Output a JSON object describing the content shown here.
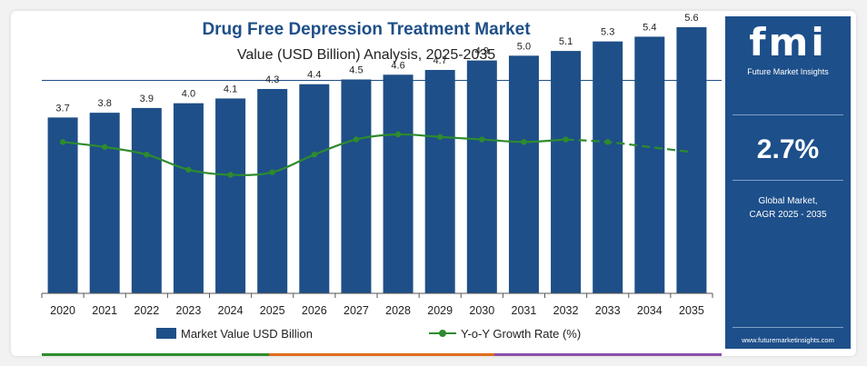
{
  "header": {
    "title": "Drug Free Depression Treatment Market",
    "subtitle": "Value (USD Billion) Analysis, 2025-2035"
  },
  "legend": {
    "bar_label": "Market Value USD Billion",
    "line_label": "Y-o-Y Growth Rate (%)"
  },
  "sidebar": {
    "logo_text": "fmi",
    "logo_subtitle": "Future Market Insights",
    "cagr_value": "2.7%",
    "cagr_label_line1": "Global Market,",
    "cagr_label_line2": "CAGR 2025 - 2035",
    "url": "www.futuremarketinsights.com"
  },
  "colors": {
    "bar": "#1e4f88",
    "line": "#2e8b2e",
    "sidebar_bg": "#1d4f8a",
    "accent_bottom": [
      "#2e8b2e",
      "#e06c1b",
      "#8a4fa8"
    ]
  },
  "chart_data": {
    "type": "bar",
    "categories": [
      "2020",
      "2021",
      "2022",
      "2023",
      "2024",
      "2025",
      "2026",
      "2027",
      "2028",
      "2029",
      "2030",
      "2031",
      "2032",
      "2033",
      "2034",
      "2035"
    ],
    "series": [
      {
        "name": "Market Value USD Billion",
        "type": "bar",
        "values": [
          3.7,
          3.8,
          3.9,
          4.0,
          4.1,
          4.3,
          4.4,
          4.5,
          4.6,
          4.7,
          4.9,
          5.0,
          5.1,
          5.3,
          5.4,
          5.6
        ],
        "labels": [
          "3.7",
          "3.8",
          "3.9",
          "4.0",
          "4.1",
          "4.3",
          "4.4",
          "4.5",
          "4.6",
          "4.7",
          "4.9",
          "5.0",
          "5.1",
          "5.3",
          "5.4",
          "5.6"
        ]
      },
      {
        "name": "Y-o-Y Growth Rate (%)",
        "type": "line",
        "values": [
          3.0,
          2.9,
          2.75,
          2.45,
          2.35,
          2.4,
          2.75,
          3.05,
          3.15,
          3.1,
          3.05,
          3.0,
          3.05,
          3.0,
          2.9,
          2.8
        ],
        "style": "solid until 2032, dashed 2032-2035"
      }
    ],
    "ylim": [
      0,
      6
    ],
    "line_ylim": [
      0,
      4.5
    ],
    "grid": false,
    "legend_position": "bottom"
  }
}
